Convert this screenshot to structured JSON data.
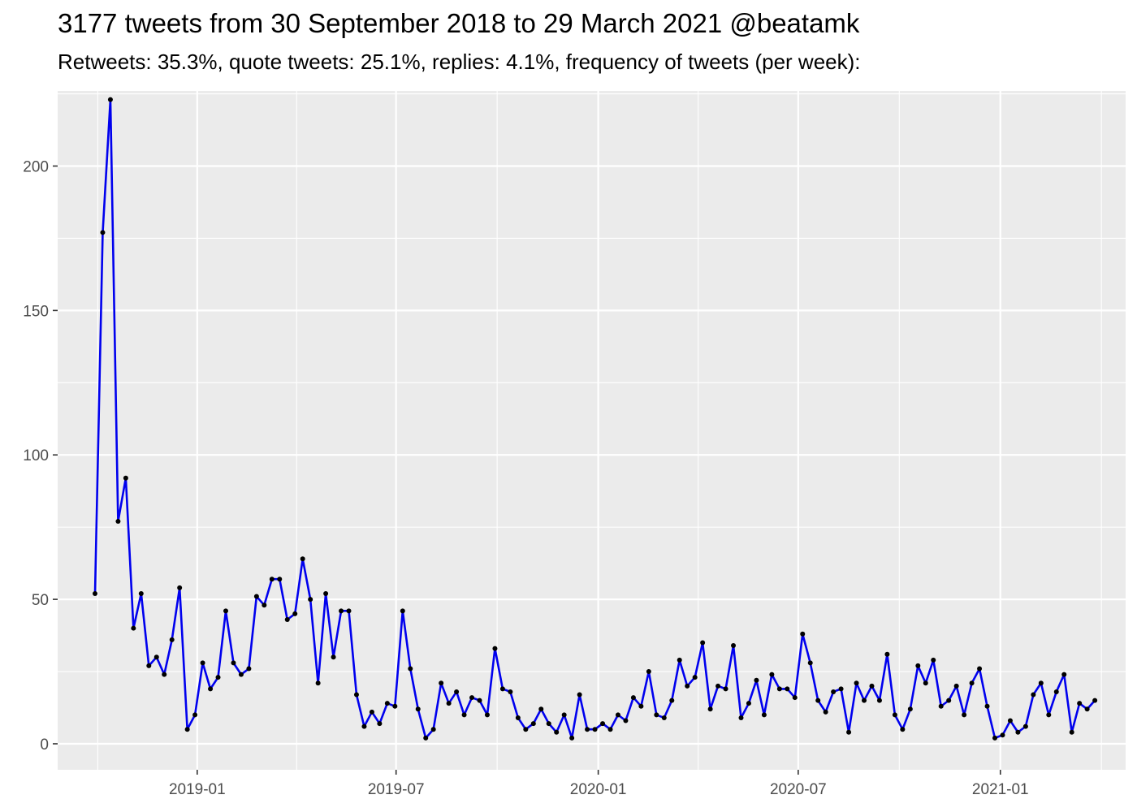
{
  "chart_data": {
    "type": "line",
    "title": "3177 tweets from 30 September 2018 to 29 March 2021 @beatamk",
    "subtitle": "Retweets: 35.3%, quote tweets: 25.1%, replies: 4.1%, frequency of tweets (per week):",
    "xlabel": "",
    "ylabel": "",
    "x_start": "2018-09-30",
    "x_step_days": 7,
    "xlim": [
      "2018-08-27",
      "2021-04-25"
    ],
    "ylim": [
      -9,
      226
    ],
    "y_ticks": [
      0,
      50,
      100,
      150,
      200
    ],
    "x_ticks": [
      {
        "date": "2019-01-01",
        "label": "2019-01"
      },
      {
        "date": "2019-07-01",
        "label": "2019-07"
      },
      {
        "date": "2020-01-01",
        "label": "2020-01"
      },
      {
        "date": "2020-07-01",
        "label": "2020-07"
      },
      {
        "date": "2021-01-01",
        "label": "2021-01"
      }
    ],
    "grid": true,
    "background": "#ebebeb",
    "line_color": "#0000ee",
    "point_color": "#000000",
    "series": [
      {
        "values": [
          52,
          177,
          223,
          77,
          92,
          40,
          52,
          27,
          30,
          24,
          36,
          54,
          5,
          10,
          28,
          19,
          23,
          46,
          28,
          24,
          26,
          51,
          48,
          57,
          57,
          43,
          45,
          64,
          50,
          21,
          52,
          30,
          46,
          46,
          17,
          6,
          11,
          7,
          14,
          13,
          46,
          26,
          12,
          2,
          5,
          21,
          14,
          18,
          10,
          16,
          15,
          10,
          33,
          19,
          18,
          9,
          5,
          7,
          12,
          7,
          4,
          10,
          2,
          17,
          5,
          5,
          7,
          5,
          10,
          8,
          16,
          13,
          25,
          10,
          9,
          15,
          29,
          20,
          23,
          35,
          12,
          20,
          19,
          34,
          9,
          14,
          22,
          10,
          24,
          19,
          19,
          16,
          38,
          28,
          15,
          11,
          18,
          19,
          4,
          21,
          15,
          20,
          15,
          31,
          10,
          5,
          12,
          27,
          21,
          29,
          13,
          15,
          20,
          10,
          21,
          26,
          13,
          2,
          3,
          8,
          4,
          6,
          17,
          21,
          10,
          18,
          24,
          4,
          14,
          12,
          15
        ]
      }
    ]
  }
}
